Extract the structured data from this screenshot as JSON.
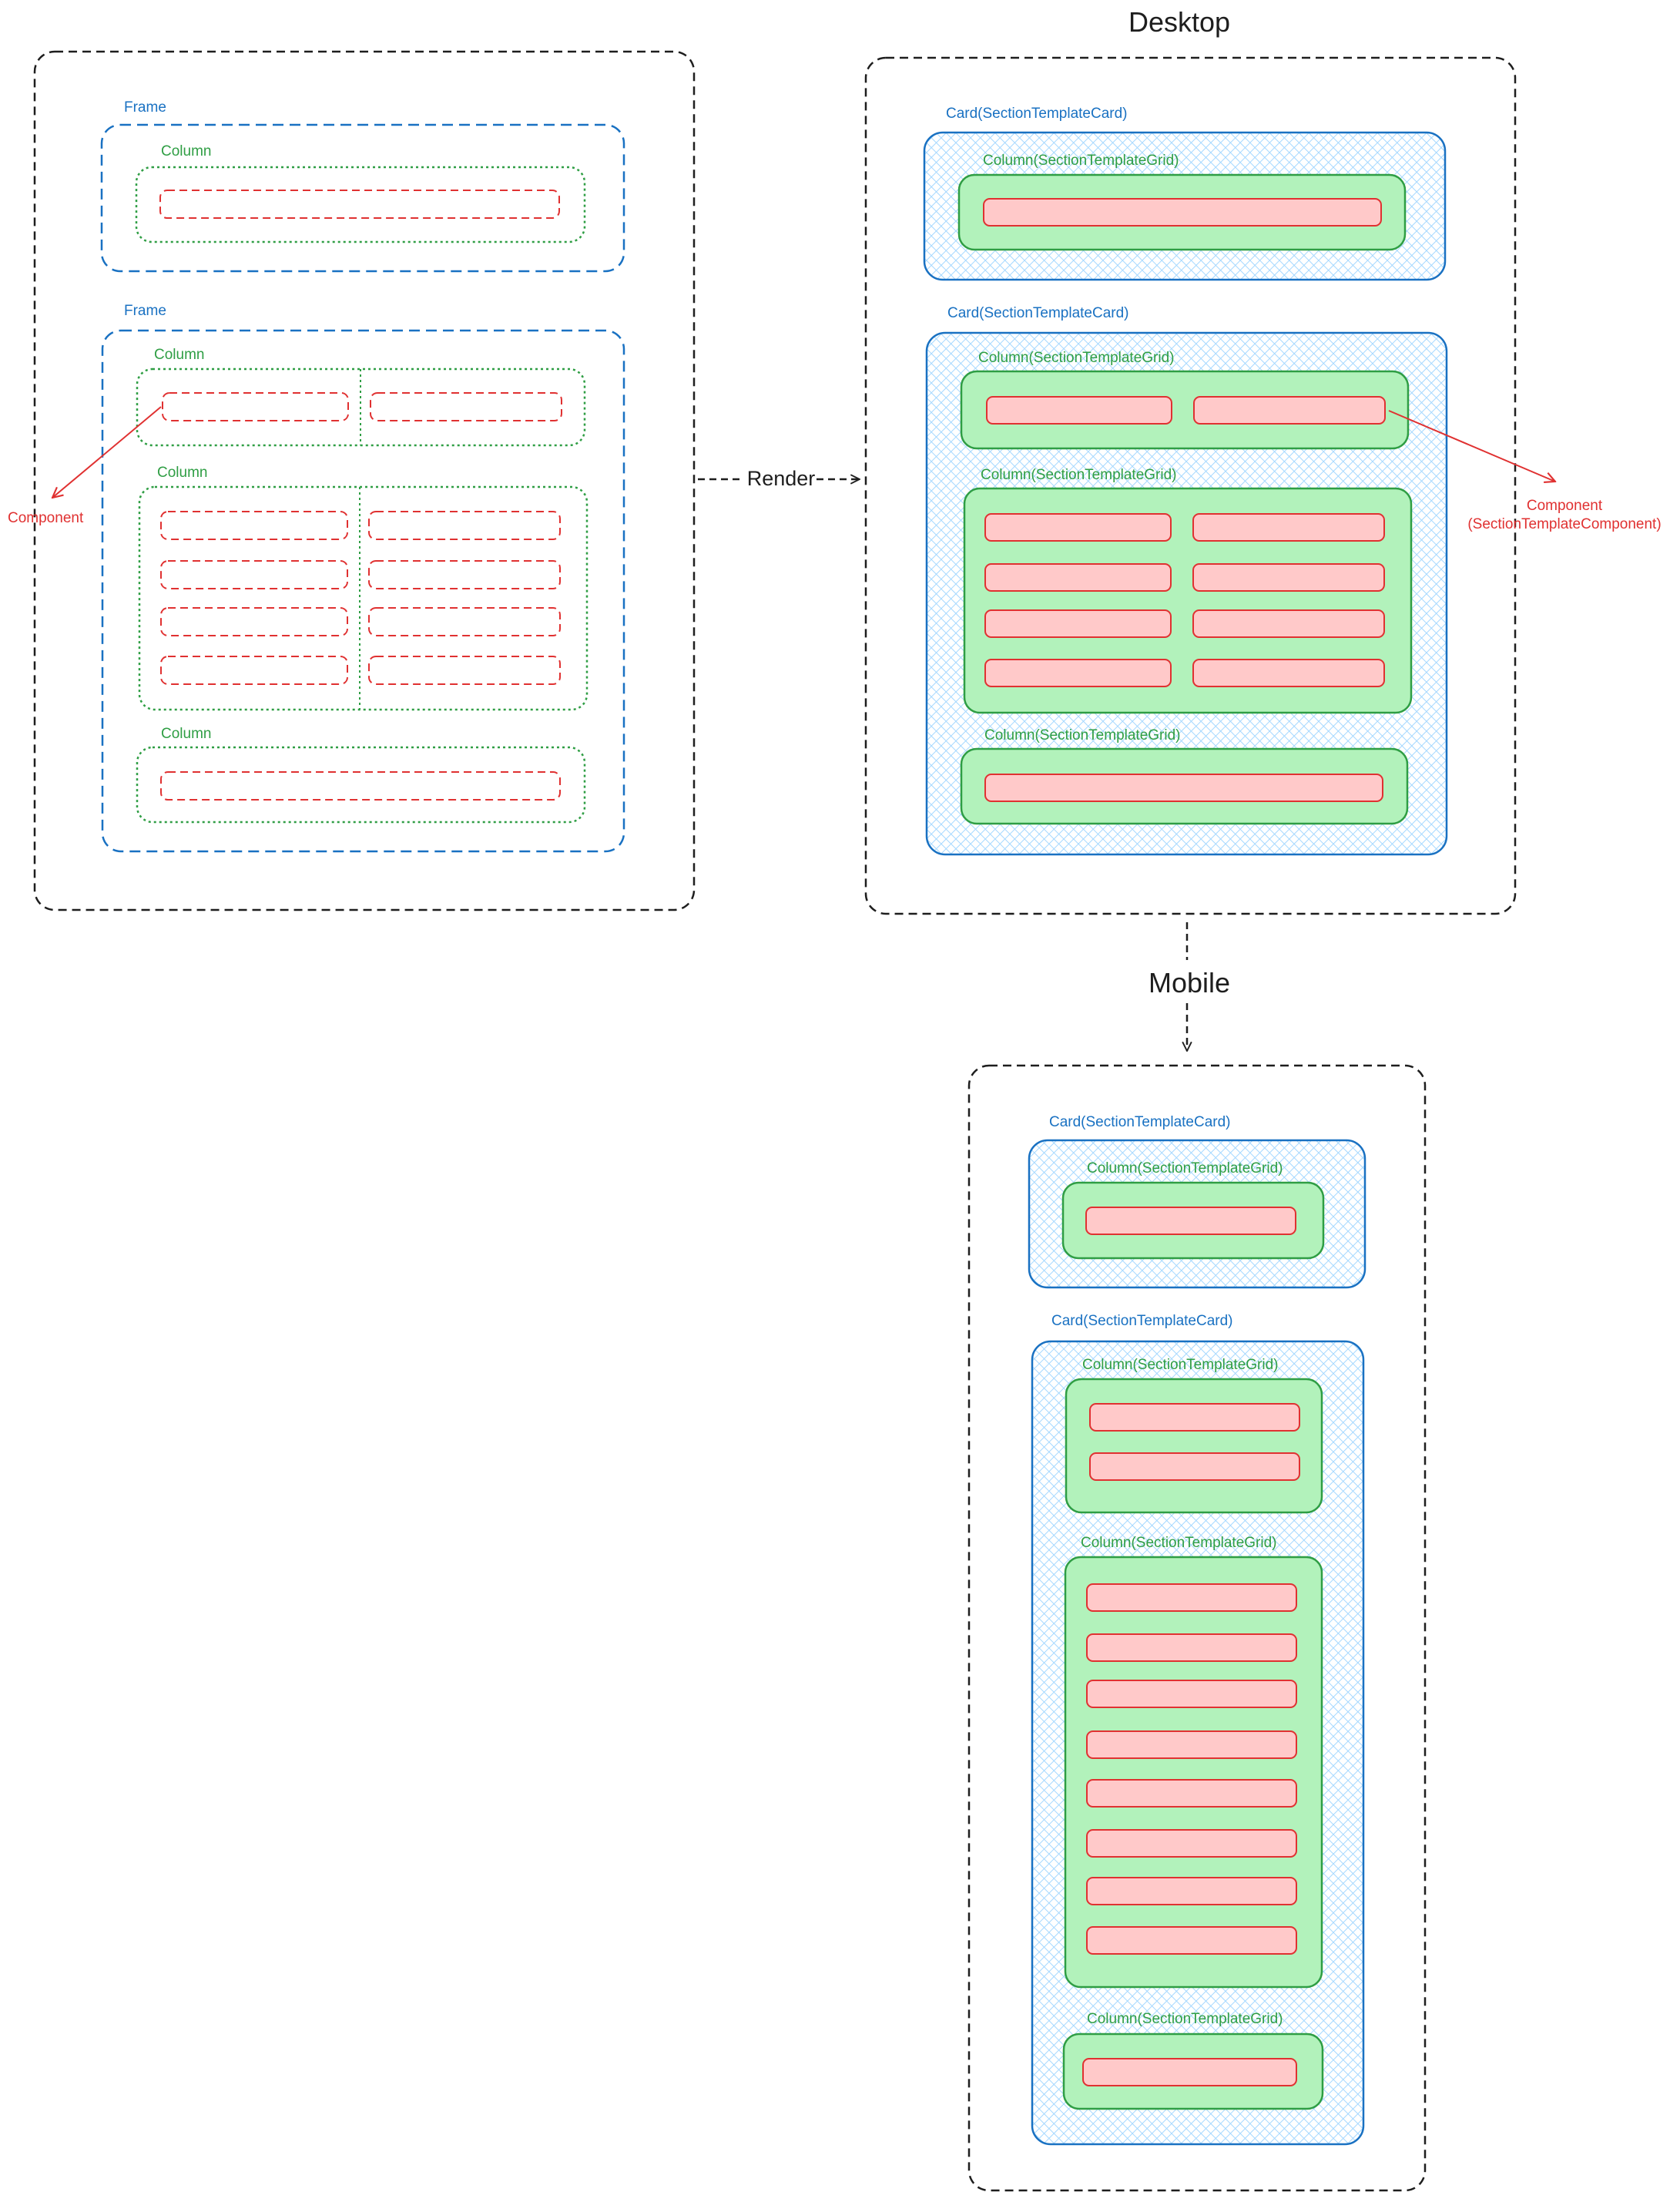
{
  "colors": {
    "outline": "#1e1e1e",
    "frame": "#1971c2",
    "column": "#2f9e44",
    "component": "#e03131",
    "card_fill": "#a5d8ff",
    "grid_fill": "#b2f2bb",
    "component_fill": "#ffc9c9"
  },
  "source": {
    "frame_label": "Frame",
    "column_label": "Column",
    "component_label": "Component"
  },
  "render_label": "Render",
  "desktop": {
    "title": "Desktop",
    "card_label": "Card(SectionTemplateCard)",
    "grid_label": "Column(SectionTemplateGrid)",
    "component_label_line1": "Component",
    "component_label_line2": "(SectionTemplateComponent)"
  },
  "mobile": {
    "title": "Mobile",
    "card_label": "Card(SectionTemplateCard)",
    "grid_label": "Column(SectionTemplateGrid)"
  },
  "structure": {
    "source_frames": [
      {
        "columns": [
          {
            "cols": 1,
            "rows": 1
          }
        ]
      },
      {
        "columns": [
          {
            "cols": 2,
            "rows": 1
          },
          {
            "cols": 2,
            "rows": 4
          },
          {
            "cols": 1,
            "rows": 1
          }
        ]
      }
    ],
    "desktop_cards": [
      {
        "grids": [
          {
            "cols": 1,
            "rows": 1
          }
        ]
      },
      {
        "grids": [
          {
            "cols": 2,
            "rows": 1
          },
          {
            "cols": 2,
            "rows": 4
          },
          {
            "cols": 1,
            "rows": 1
          }
        ]
      }
    ],
    "mobile_cards": [
      {
        "grids": [
          {
            "cols": 1,
            "rows": 1
          }
        ]
      },
      {
        "grids": [
          {
            "cols": 1,
            "rows": 2
          },
          {
            "cols": 1,
            "rows": 8
          },
          {
            "cols": 1,
            "rows": 1
          }
        ]
      }
    ]
  }
}
